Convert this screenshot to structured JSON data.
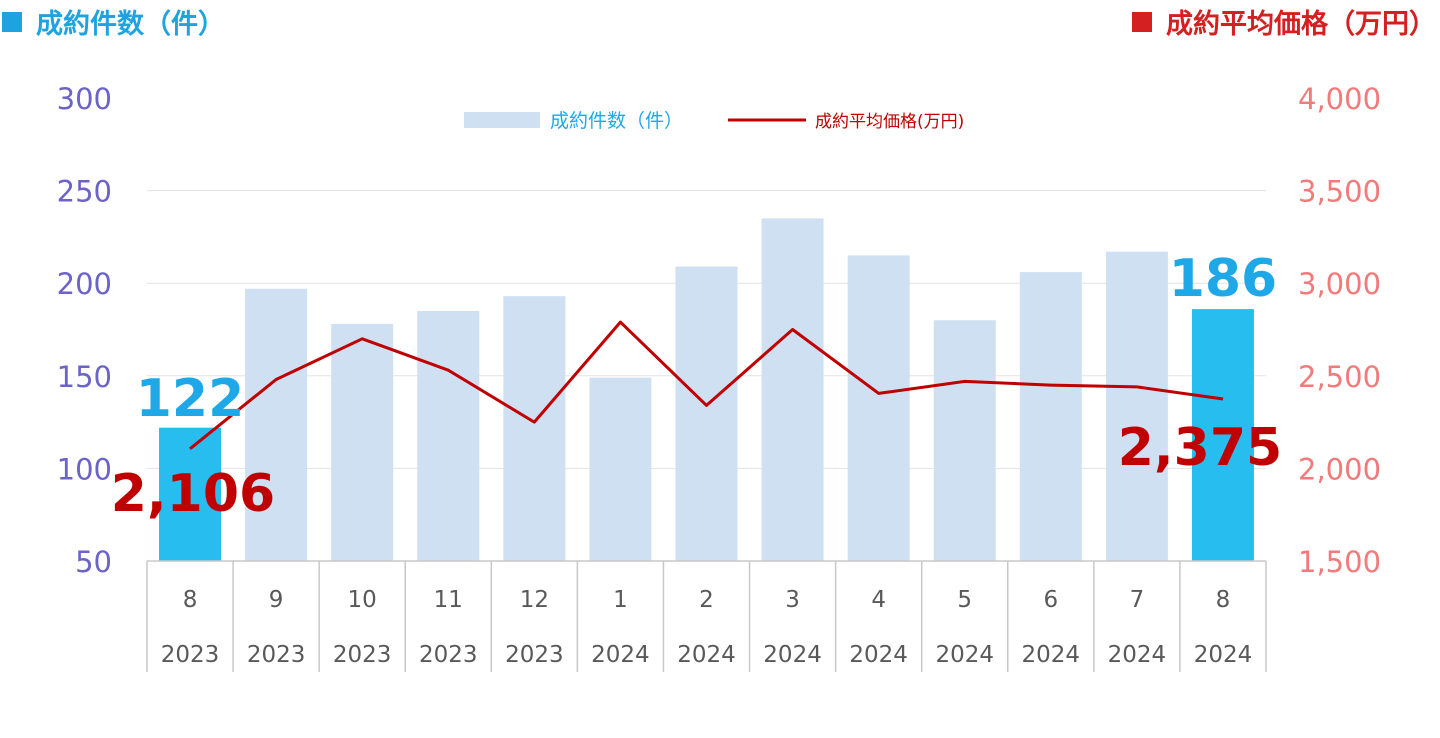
{
  "headers": {
    "left": "成約件数（件）",
    "right": "成約平均価格（万円）"
  },
  "colors": {
    "bar": "#cfe0f3",
    "bar_highlight": "#27bdee",
    "line": "#c00000",
    "left_axis_text": "#6b63c9",
    "right_axis_text": "#f27a7a",
    "highlight_count_label": "#1fa8e8",
    "highlight_price_label": "#c00000"
  },
  "chart_data": {
    "type": "bar",
    "categories": [
      {
        "month": "8",
        "year": "2023"
      },
      {
        "month": "9",
        "year": "2023"
      },
      {
        "month": "10",
        "year": "2023"
      },
      {
        "month": "11",
        "year": "2023"
      },
      {
        "month": "12",
        "year": "2023"
      },
      {
        "month": "1",
        "year": "2024"
      },
      {
        "month": "2",
        "year": "2024"
      },
      {
        "month": "3",
        "year": "2024"
      },
      {
        "month": "4",
        "year": "2024"
      },
      {
        "month": "5",
        "year": "2024"
      },
      {
        "month": "6",
        "year": "2024"
      },
      {
        "month": "7",
        "year": "2024"
      },
      {
        "month": "8",
        "year": "2024"
      }
    ],
    "series": [
      {
        "name": "成約件数（件）",
        "type": "bar",
        "axis": "left",
        "values": [
          122,
          197,
          178,
          185,
          193,
          149,
          209,
          235,
          215,
          180,
          206,
          217,
          186
        ],
        "highlight_indices": [
          0,
          12
        ]
      },
      {
        "name": "成約平均価格(万円)",
        "type": "line",
        "axis": "right",
        "values": [
          2106,
          2480,
          2700,
          2530,
          2250,
          2790,
          2340,
          2750,
          2405,
          2470,
          2450,
          2440,
          2375
        ]
      }
    ],
    "left_axis": {
      "ylim": [
        50,
        300
      ],
      "ticks": [
        "50",
        "100",
        "150",
        "200",
        "250",
        "300"
      ]
    },
    "right_axis": {
      "ylim": [
        1500,
        4000
      ],
      "ticks": [
        "1,500",
        "2,000",
        "2,500",
        "3,000",
        "3,500",
        "4,000"
      ]
    },
    "data_labels": {
      "first_count": "122",
      "last_count": "186",
      "first_price": "2,106",
      "last_price": "2,375"
    },
    "legend": {
      "placement": "top-center",
      "bar_label": "成約件数（件）",
      "line_label": "成約平均価格(万円)"
    },
    "grid": true
  }
}
